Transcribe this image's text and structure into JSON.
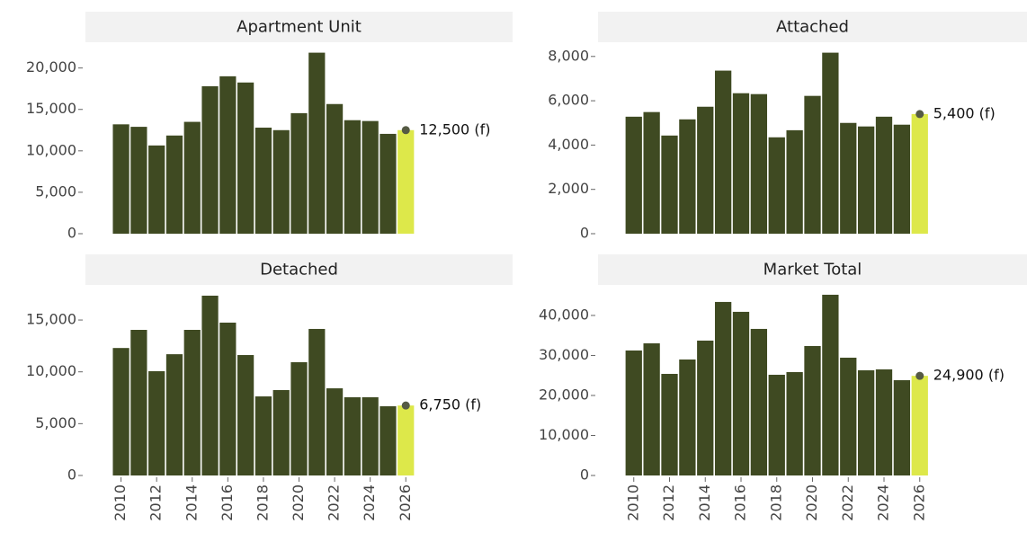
{
  "chart_data": [
    {
      "type": "bar",
      "title": "Apartment Unit",
      "x": [
        2010,
        2011,
        2012,
        2013,
        2014,
        2015,
        2016,
        2017,
        2018,
        2019,
        2020,
        2021,
        2022,
        2023,
        2024,
        2025,
        2026
      ],
      "values": [
        13200,
        12900,
        10650,
        11850,
        13500,
        17800,
        19000,
        18250,
        12800,
        12500,
        14550,
        21850,
        15650,
        13700,
        13600,
        12050,
        12500
      ],
      "value_labels": [
        null,
        null,
        null,
        null,
        null,
        null,
        null,
        null,
        null,
        null,
        null,
        null,
        null,
        null,
        null,
        null,
        "12,500 (f)"
      ],
      "color": "#3f4a22",
      "forecast_color": "#dde84a",
      "xlim": [
        2008,
        2032
      ],
      "ylim": [
        0,
        23000
      ],
      "yticks": [
        {
          "value": 0,
          "label": "0"
        },
        {
          "value": 5000,
          "label": "5,000"
        },
        {
          "value": 10000,
          "label": "10,000"
        },
        {
          "value": 15000,
          "label": "15,000"
        },
        {
          "value": 20000,
          "label": "20,000"
        }
      ]
    },
    {
      "type": "bar",
      "title": "Attached",
      "x": [
        2010,
        2011,
        2012,
        2013,
        2014,
        2015,
        2016,
        2017,
        2018,
        2019,
        2020,
        2021,
        2022,
        2023,
        2024,
        2025,
        2026
      ],
      "values": [
        5280,
        5490,
        4430,
        5160,
        5730,
        7360,
        6340,
        6300,
        4350,
        4670,
        6220,
        8170,
        5000,
        4840,
        5280,
        4920,
        5400
      ],
      "value_labels": [
        null,
        null,
        null,
        null,
        null,
        null,
        null,
        null,
        null,
        null,
        null,
        null,
        null,
        null,
        null,
        null,
        "5,400 (f)"
      ],
      "color": "#3f4a22",
      "forecast_color": "#dde84a",
      "xlim": [
        2008,
        2032
      ],
      "ylim": [
        0,
        8600
      ],
      "yticks": [
        {
          "value": 0,
          "label": "0"
        },
        {
          "value": 2000,
          "label": "2,000"
        },
        {
          "value": 4000,
          "label": "4,000"
        },
        {
          "value": 6000,
          "label": "6,000"
        },
        {
          "value": 8000,
          "label": "8,000"
        }
      ]
    },
    {
      "type": "bar",
      "title": "Detached",
      "x": [
        2010,
        2011,
        2012,
        2013,
        2014,
        2015,
        2016,
        2017,
        2018,
        2019,
        2020,
        2021,
        2022,
        2023,
        2024,
        2025,
        2026
      ],
      "values": [
        12300,
        14050,
        10060,
        11700,
        14050,
        17350,
        14750,
        11620,
        7630,
        8240,
        10930,
        14140,
        8410,
        7550,
        7550,
        6680,
        6750
      ],
      "value_labels": [
        null,
        null,
        null,
        null,
        null,
        null,
        null,
        null,
        null,
        null,
        null,
        null,
        null,
        null,
        null,
        null,
        "6,750 (f)"
      ],
      "color": "#3f4a22",
      "forecast_color": "#dde84a",
      "xlim": [
        2008,
        2032
      ],
      "ylim": [
        0,
        18300
      ],
      "xticks": [
        2010,
        2012,
        2014,
        2016,
        2018,
        2020,
        2022,
        2024,
        2026
      ],
      "yticks": [
        {
          "value": 0,
          "label": "0"
        },
        {
          "value": 5000,
          "label": "5,000"
        },
        {
          "value": 10000,
          "label": "10,000"
        },
        {
          "value": 15000,
          "label": "15,000"
        }
      ]
    },
    {
      "type": "bar",
      "title": "Market Total",
      "x": [
        2010,
        2011,
        2012,
        2013,
        2014,
        2015,
        2016,
        2017,
        2018,
        2019,
        2020,
        2021,
        2022,
        2023,
        2024,
        2025,
        2026
      ],
      "values": [
        31240,
        33030,
        25390,
        28990,
        33710,
        43370,
        40900,
        36630,
        25170,
        25840,
        32360,
        45170,
        29440,
        26290,
        26520,
        23820,
        24900
      ],
      "value_labels": [
        null,
        null,
        null,
        null,
        null,
        null,
        null,
        null,
        null,
        null,
        null,
        null,
        null,
        null,
        null,
        null,
        "24,900 (f)"
      ],
      "color": "#3f4a22",
      "forecast_color": "#dde84a",
      "xlim": [
        2008,
        2032
      ],
      "ylim": [
        0,
        47400
      ],
      "xticks": [
        2010,
        2012,
        2014,
        2016,
        2018,
        2020,
        2022,
        2024,
        2026
      ],
      "yticks": [
        {
          "value": 0,
          "label": "0"
        },
        {
          "value": 10000,
          "label": "10,000"
        },
        {
          "value": 20000,
          "label": "20,000"
        },
        {
          "value": 30000,
          "label": "30,000"
        },
        {
          "value": 40000,
          "label": "40,000"
        }
      ]
    }
  ]
}
